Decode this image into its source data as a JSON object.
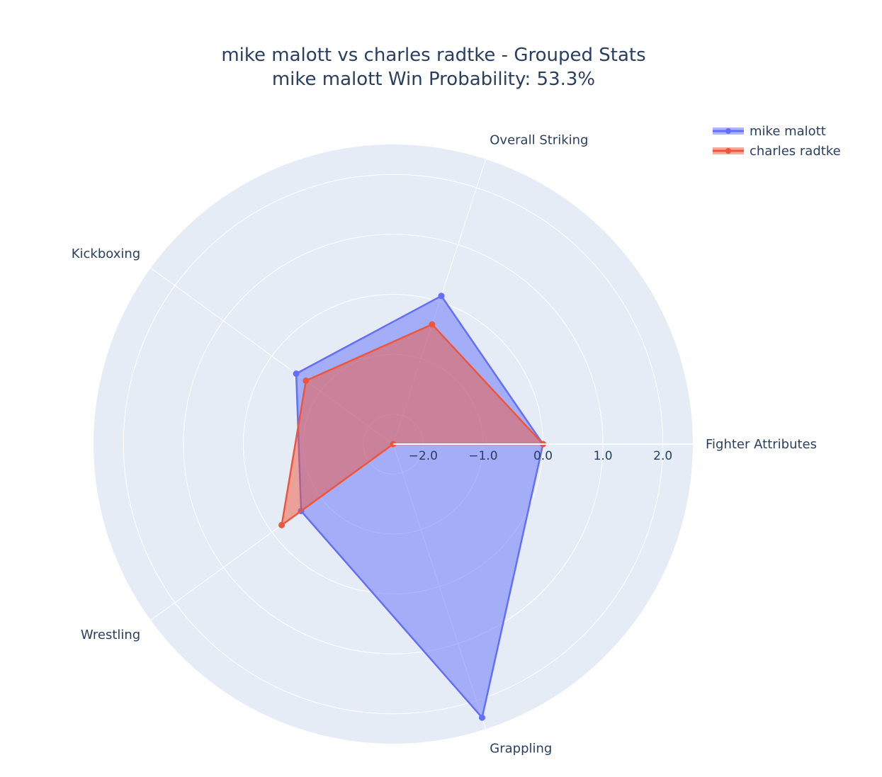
{
  "chart_data": {
    "type": "radar",
    "title": "mike malott vs charles radtke - Grouped Stats",
    "subtitle": "mike malott Win Probability: 53.3%",
    "categories": [
      "Fighter Attributes",
      "Overall Striking",
      "Kickboxing",
      "Wrestling",
      "Grappling"
    ],
    "radial_ticks": [
      "−2.0",
      "−1.0",
      "0.0",
      "1.0",
      "2.0"
    ],
    "radial_tick_values": [
      -2,
      -1,
      0,
      1,
      2
    ],
    "radial_range": [
      -2.5,
      2.5
    ],
    "series": [
      {
        "name": "mike malott",
        "color": "#636efa",
        "values": [
          0.0,
          0.1,
          -0.5,
          -0.6,
          2.3
        ]
      },
      {
        "name": "charles radtke",
        "color": "#ef553b",
        "values": [
          0.0,
          -0.4,
          -0.7,
          -0.2,
          -2.5
        ]
      }
    ],
    "legend_position": "top-right",
    "grid": true
  }
}
